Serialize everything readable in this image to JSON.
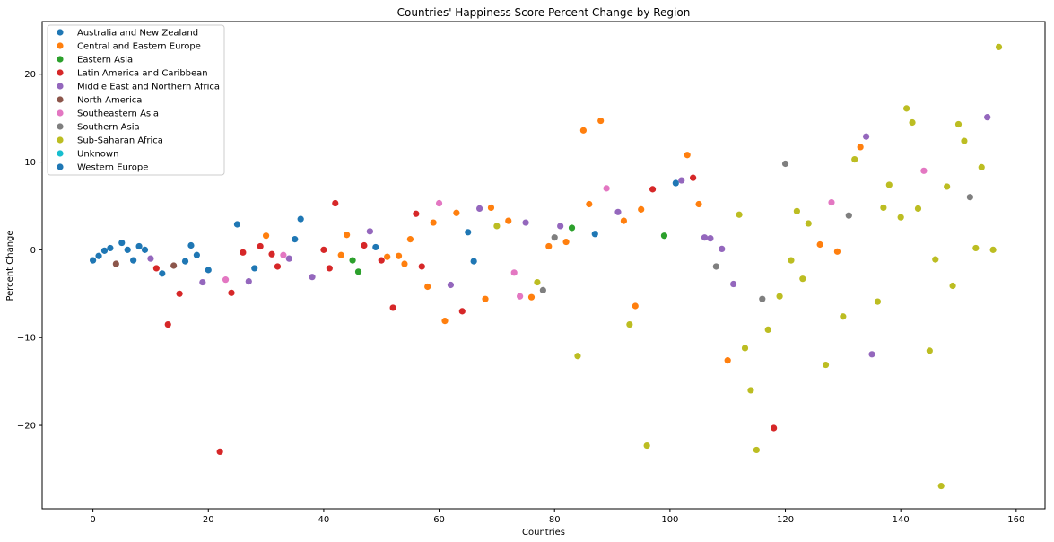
{
  "chart_data": {
    "type": "scatter",
    "title": "Countries' Happiness Score Percent Change by Region",
    "xlabel": "Countries",
    "ylabel": "Percent Change",
    "xlim": [
      -8.8,
      165
    ],
    "ylim": [
      -29.5,
      26
    ],
    "xticks": [
      0,
      20,
      40,
      60,
      80,
      100,
      120,
      140,
      160
    ],
    "yticks": [
      -20,
      -10,
      0,
      10,
      20
    ],
    "grid": false,
    "legend_position": "top-left",
    "series": [
      {
        "name": "Australia and New Zealand",
        "color": "#1f77b4",
        "points": [
          [
            8,
            0.4
          ],
          [
            9,
            0.0
          ]
        ]
      },
      {
        "name": "Central and Eastern Europe",
        "color": "#ff7f0e",
        "points": [
          [
            30,
            1.6
          ],
          [
            43,
            -0.6
          ],
          [
            44,
            1.7
          ],
          [
            51,
            -0.8
          ],
          [
            53,
            -0.7
          ],
          [
            54,
            -1.6
          ],
          [
            55,
            1.2
          ],
          [
            58,
            -4.2
          ],
          [
            59,
            3.1
          ],
          [
            61,
            -8.1
          ],
          [
            63,
            4.2
          ],
          [
            68,
            -5.6
          ],
          [
            69,
            4.8
          ],
          [
            72,
            3.3
          ],
          [
            76,
            -5.4
          ],
          [
            79,
            0.4
          ],
          [
            82,
            0.9
          ],
          [
            85,
            13.6
          ],
          [
            86,
            5.2
          ],
          [
            88,
            14.7
          ],
          [
            92,
            3.3
          ],
          [
            94,
            -6.4
          ],
          [
            95,
            4.6
          ],
          [
            103,
            10.8
          ],
          [
            105,
            5.2
          ],
          [
            110,
            -12.6
          ],
          [
            126,
            0.6
          ],
          [
            129,
            -0.2
          ],
          [
            133,
            11.7
          ]
        ]
      },
      {
        "name": "Eastern Asia",
        "color": "#2ca02c",
        "points": [
          [
            45,
            -1.2
          ],
          [
            46,
            -2.5
          ],
          [
            83,
            2.5
          ],
          [
            99,
            1.6
          ]
        ]
      },
      {
        "name": "Latin America and Caribbean",
        "color": "#d62728",
        "points": [
          [
            11,
            -2.1
          ],
          [
            13,
            -8.5
          ],
          [
            15,
            -5.0
          ],
          [
            22,
            -23.0
          ],
          [
            24,
            -4.9
          ],
          [
            26,
            -0.3
          ],
          [
            29,
            0.4
          ],
          [
            31,
            -0.5
          ],
          [
            32,
            -1.9
          ],
          [
            40,
            0.0
          ],
          [
            41,
            -2.1
          ],
          [
            42,
            5.3
          ],
          [
            47,
            0.5
          ],
          [
            50,
            -1.2
          ],
          [
            52,
            -6.6
          ],
          [
            56,
            4.1
          ],
          [
            57,
            -1.9
          ],
          [
            64,
            -7.0
          ],
          [
            97,
            6.9
          ],
          [
            104,
            8.2
          ],
          [
            118,
            -20.3
          ]
        ]
      },
      {
        "name": "Middle East and Northern Africa",
        "color": "#9467bd",
        "points": [
          [
            10,
            -1.0
          ],
          [
            19,
            -3.7
          ],
          [
            27,
            -3.6
          ],
          [
            34,
            -1.0
          ],
          [
            38,
            -3.1
          ],
          [
            48,
            2.1
          ],
          [
            62,
            -4.0
          ],
          [
            67,
            4.7
          ],
          [
            75,
            3.1
          ],
          [
            81,
            2.7
          ],
          [
            91,
            4.3
          ],
          [
            102,
            7.9
          ],
          [
            106,
            1.4
          ],
          [
            107,
            1.3
          ],
          [
            109,
            0.1
          ],
          [
            111,
            -3.9
          ],
          [
            134,
            12.9
          ],
          [
            135,
            -11.9
          ],
          [
            155,
            15.1
          ]
        ]
      },
      {
        "name": "North America",
        "color": "#8c564b",
        "points": [
          [
            4,
            -1.6
          ],
          [
            14,
            -1.8
          ]
        ]
      },
      {
        "name": "Southeastern Asia",
        "color": "#e377c2",
        "points": [
          [
            23,
            -3.4
          ],
          [
            33,
            -0.6
          ],
          [
            60,
            5.3
          ],
          [
            73,
            -2.6
          ],
          [
            74,
            -5.3
          ],
          [
            89,
            7.0
          ],
          [
            128,
            5.4
          ],
          [
            144,
            9.0
          ]
        ]
      },
      {
        "name": "Southern Asia",
        "color": "#7f7f7f",
        "points": [
          [
            78,
            -4.6
          ],
          [
            80,
            1.4
          ],
          [
            108,
            -1.9
          ],
          [
            116,
            -5.6
          ],
          [
            120,
            9.8
          ],
          [
            131,
            3.9
          ],
          [
            152,
            6.0
          ]
        ]
      },
      {
        "name": "Sub-Saharan Africa",
        "color": "#bcbd22",
        "points": [
          [
            70,
            2.7
          ],
          [
            77,
            -3.7
          ],
          [
            84,
            -12.1
          ],
          [
            93,
            -8.5
          ],
          [
            96,
            -22.3
          ],
          [
            112,
            4.0
          ],
          [
            113,
            -11.2
          ],
          [
            114,
            -16.0
          ],
          [
            115,
            -22.8
          ],
          [
            117,
            -9.1
          ],
          [
            119,
            -5.3
          ],
          [
            121,
            -1.2
          ],
          [
            122,
            4.4
          ],
          [
            123,
            -3.3
          ],
          [
            124,
            3.0
          ],
          [
            127,
            -13.1
          ],
          [
            130,
            -7.6
          ],
          [
            132,
            10.3
          ],
          [
            136,
            -5.9
          ],
          [
            137,
            4.8
          ],
          [
            138,
            7.4
          ],
          [
            140,
            3.7
          ],
          [
            141,
            16.1
          ],
          [
            142,
            14.5
          ],
          [
            143,
            4.7
          ],
          [
            145,
            -11.5
          ],
          [
            146,
            -1.1
          ],
          [
            147,
            -26.9
          ],
          [
            148,
            7.2
          ],
          [
            149,
            -4.1
          ],
          [
            150,
            14.3
          ],
          [
            151,
            12.4
          ],
          [
            153,
            0.2
          ],
          [
            154,
            9.4
          ],
          [
            156,
            0.0
          ],
          [
            157,
            23.1
          ]
        ]
      },
      {
        "name": "Unknown",
        "color": "#17becf",
        "points": []
      },
      {
        "name": "Western Europe",
        "color": "#1f77b4",
        "points": [
          [
            0,
            -1.2
          ],
          [
            1,
            -0.7
          ],
          [
            2,
            -0.1
          ],
          [
            3,
            0.2
          ],
          [
            5,
            0.8
          ],
          [
            6,
            0.0
          ],
          [
            7,
            -1.2
          ],
          [
            12,
            -2.7
          ],
          [
            16,
            -1.3
          ],
          [
            17,
            0.5
          ],
          [
            18,
            -0.6
          ],
          [
            20,
            -2.3
          ],
          [
            25,
            2.9
          ],
          [
            28,
            -2.1
          ],
          [
            35,
            1.2
          ],
          [
            36,
            3.5
          ],
          [
            49,
            0.3
          ],
          [
            65,
            2.0
          ],
          [
            66,
            -1.3
          ],
          [
            87,
            1.8
          ],
          [
            101,
            7.6
          ]
        ]
      }
    ]
  }
}
